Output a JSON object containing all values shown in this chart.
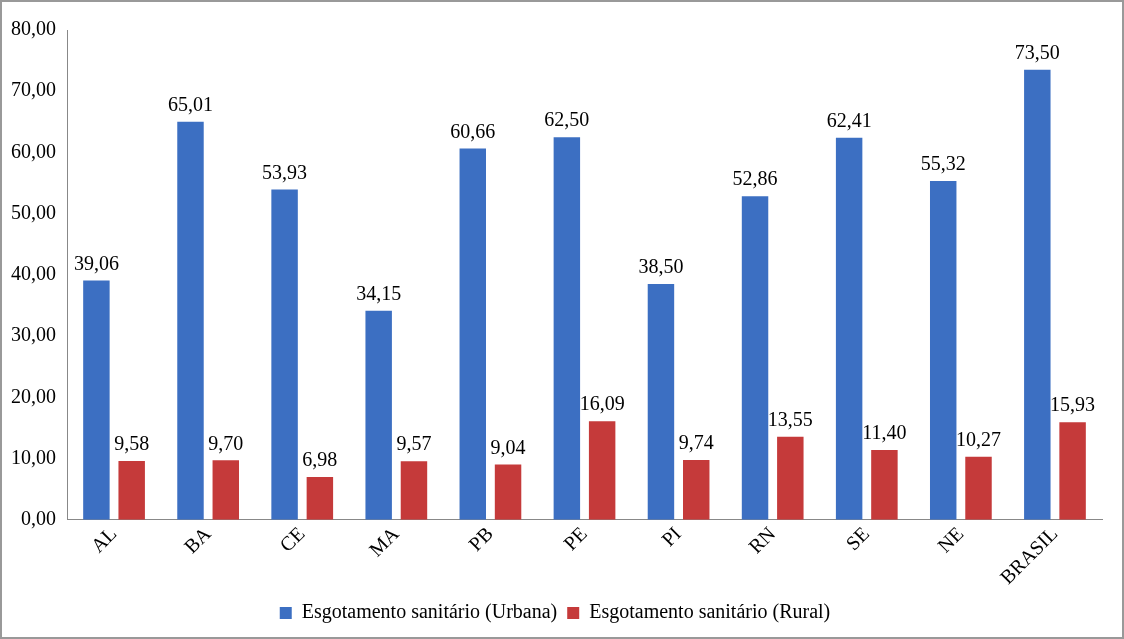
{
  "chart_data": {
    "type": "bar",
    "categories": [
      "AL",
      "BA",
      "CE",
      "MA",
      "PB",
      "PE",
      "PI",
      "RN",
      "SE",
      "NE",
      "BRASIL"
    ],
    "series": [
      {
        "name": "Esgotamento sanitário (Urbana)",
        "color": "#3c6fc2",
        "values": [
          39.06,
          65.01,
          53.93,
          34.15,
          60.66,
          62.5,
          38.5,
          52.86,
          62.41,
          55.32,
          73.5
        ],
        "value_labels": [
          "39,06",
          "65,01",
          "53,93",
          "34,15",
          "60,66",
          "62,50",
          "38,50",
          "52,86",
          "62,41",
          "55,32",
          "73,50"
        ]
      },
      {
        "name": "Esgotamento sanitário (Rural)",
        "color": "#c53a3a",
        "values": [
          9.58,
          9.7,
          6.98,
          9.57,
          9.04,
          16.09,
          9.74,
          13.55,
          11.4,
          10.27,
          15.93
        ],
        "value_labels": [
          "9,58",
          "9,70",
          "6,98",
          "9,57",
          "9,04",
          "16,09",
          "9,74",
          "13,55",
          "11,40",
          "10,27",
          "15,93"
        ]
      }
    ],
    "ylim": [
      0,
      80
    ],
    "yticks": [
      {
        "value": 0,
        "label": "0,00"
      },
      {
        "value": 10,
        "label": "10,00"
      },
      {
        "value": 20,
        "label": "20,00"
      },
      {
        "value": 30,
        "label": "30,00"
      },
      {
        "value": 40,
        "label": "40,00"
      },
      {
        "value": 50,
        "label": "50,00"
      },
      {
        "value": 60,
        "label": "60,00"
      },
      {
        "value": 70,
        "label": "70,00"
      },
      {
        "value": 80,
        "label": "80,00"
      }
    ],
    "grid": false,
    "legend": "bottom"
  }
}
